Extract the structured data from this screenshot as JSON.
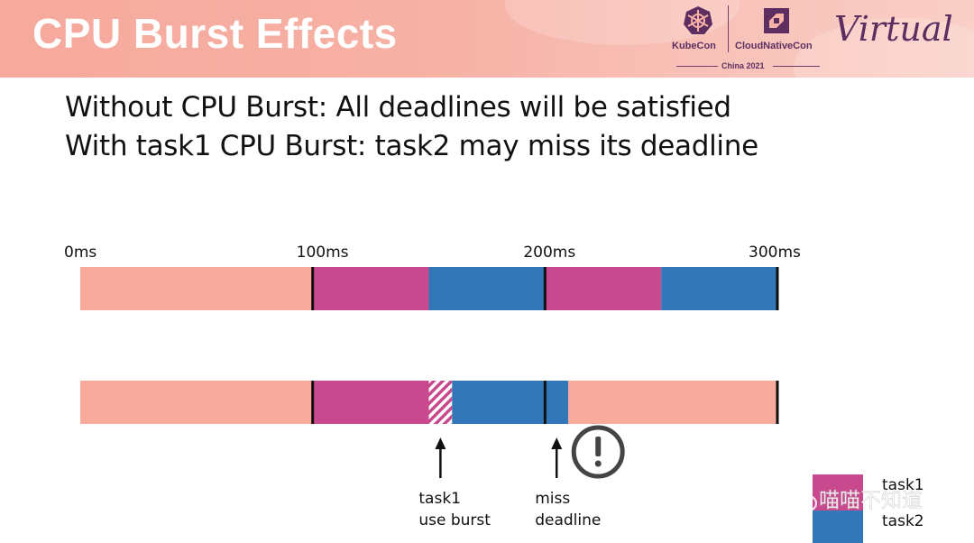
{
  "header": {
    "title": "CPU Burst Effects",
    "kubecon": "KubeCon",
    "cloudnativecon": "CloudNativeCon",
    "china": "China 2021",
    "virtual": "Virtual"
  },
  "body": {
    "line1": "Without CPU Burst: All deadlines will be satisfied",
    "line2": "With task1 CPU Burst: task2 may miss its deadline"
  },
  "chart_data": {
    "type": "timeline",
    "time_unit": "ms",
    "time_range": [
      0,
      300
    ],
    "ticks": [
      {
        "t": 0,
        "label": "0ms"
      },
      {
        "t": 100,
        "label": "100ms"
      },
      {
        "t": 200,
        "label": "200ms"
      },
      {
        "t": 300,
        "label": "300ms"
      }
    ],
    "rows": [
      {
        "name": "without-burst",
        "segments": [
          {
            "start": 0,
            "end": 100,
            "kind": "idle"
          },
          {
            "start": 100,
            "end": 150,
            "kind": "task1"
          },
          {
            "start": 150,
            "end": 200,
            "kind": "task2"
          },
          {
            "start": 200,
            "end": 250,
            "kind": "task1"
          },
          {
            "start": 250,
            "end": 300,
            "kind": "task2"
          }
        ],
        "markers": [
          100,
          200,
          300
        ]
      },
      {
        "name": "with-burst",
        "segments": [
          {
            "start": 0,
            "end": 100,
            "kind": "idle"
          },
          {
            "start": 100,
            "end": 150,
            "kind": "task1"
          },
          {
            "start": 150,
            "end": 160,
            "kind": "burst"
          },
          {
            "start": 160,
            "end": 210,
            "kind": "task2"
          },
          {
            "start": 210,
            "end": 300,
            "kind": "idle"
          }
        ],
        "markers": [
          100,
          200,
          300
        ]
      }
    ],
    "annotations": [
      {
        "t": 155,
        "lines": [
          "task1",
          "use burst"
        ]
      },
      {
        "t": 205,
        "lines": [
          "miss",
          "deadline"
        ],
        "warning": true
      }
    ],
    "legend": [
      {
        "label": "task1",
        "kind": "task1"
      },
      {
        "label": "task2",
        "kind": "task2"
      }
    ],
    "colors": {
      "idle": "#f8ab9d",
      "task1": "#c8498e",
      "task2": "#3278b8",
      "burst": "#c8498e",
      "marker": "#111111",
      "warning": "#444444"
    }
  },
  "watermark": "喵喵不知道"
}
